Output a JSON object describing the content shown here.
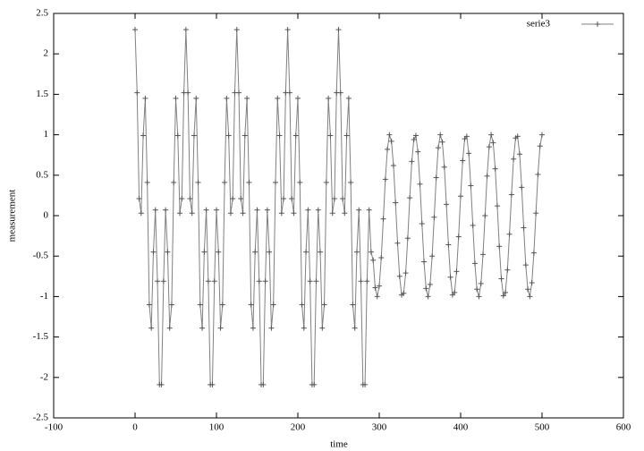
{
  "chart_data": {
    "type": "line",
    "xlabel": "time",
    "ylabel": "measurement",
    "xlim": [
      -100,
      600
    ],
    "xticks": [
      -100,
      0,
      100,
      200,
      300,
      400,
      500,
      600
    ],
    "ylim": [
      -2.5,
      2.5
    ],
    "yticks": [
      -2.5,
      -2,
      -1.5,
      -1,
      -0.5,
      0,
      0.5,
      1,
      1.5,
      2,
      2.5
    ],
    "legend": "top-right",
    "marker": "+",
    "x": [
      0,
      2.5,
      5,
      7.5,
      10,
      12.5,
      15,
      17.5,
      20,
      22.5,
      25,
      27.5,
      30,
      32.5,
      35,
      37.5,
      40,
      42.5,
      45,
      47.5,
      50,
      52.5,
      55,
      57.5,
      60,
      62.5,
      65,
      67.5,
      70,
      72.5,
      75,
      77.5,
      80,
      82.5,
      85,
      87.5,
      90,
      92.5,
      95,
      97.5,
      100,
      102.5,
      105,
      107.5,
      110,
      112.5,
      115,
      117.5,
      120,
      122.5,
      125,
      127.5,
      130,
      132.5,
      135,
      137.5,
      140,
      142.5,
      145,
      147.5,
      150,
      152.5,
      155,
      157.5,
      160,
      162.5,
      165,
      167.5,
      170,
      172.5,
      175,
      177.5,
      180,
      182.5,
      185,
      187.5,
      190,
      192.5,
      195,
      197.5,
      200,
      202.5,
      205,
      207.5,
      210,
      212.5,
      215,
      217.5,
      220,
      222.5,
      225,
      227.5,
      230,
      232.5,
      235,
      237.5,
      240,
      242.5,
      245,
      247.5,
      250,
      252.5,
      255,
      257.5,
      260,
      262.5,
      265,
      267.5,
      270,
      272.5,
      275,
      277.5,
      280,
      282.5,
      285,
      287.5,
      290,
      292.5,
      295,
      297.5,
      300,
      302.5,
      305,
      307.5,
      310,
      312.5,
      315,
      317.5,
      320,
      322.5,
      325,
      327.5,
      330,
      332.5,
      335,
      337.5,
      340,
      342.5,
      345,
      347.5,
      350,
      352.5,
      355,
      357.5,
      360,
      362.5,
      365,
      367.5,
      370,
      372.5,
      375,
      377.5,
      380,
      382.5,
      385,
      387.5,
      390,
      392.5,
      395,
      397.5,
      400,
      402.5,
      405,
      407.5,
      410,
      412.5,
      415,
      417.5,
      420,
      422.5,
      425,
      427.5,
      430,
      432.5,
      435,
      437.5,
      440,
      442.5,
      445,
      447.5,
      450,
      452.5,
      455,
      457.5,
      460,
      462.5,
      465,
      467.5,
      470,
      472.5,
      475,
      477.5,
      480,
      482.5,
      485,
      487.5,
      490,
      492.5,
      495,
      497.5,
      500
    ],
    "series": [
      {
        "name": "serie3",
        "color": "#555555",
        "values": [
          2.3,
          1.52,
          0.21,
          0.03,
          0.99,
          1.45,
          0.41,
          -1.1,
          -1.39,
          -0.45,
          0.07,
          -0.81,
          -2.09,
          -2.09,
          -0.81,
          0.07,
          -0.45,
          -1.39,
          -1.1,
          0.41,
          1.45,
          0.99,
          0.03,
          0.21,
          1.52,
          2.3,
          1.52,
          0.21,
          0.03,
          0.99,
          1.45,
          0.41,
          -1.1,
          -1.39,
          -0.45,
          0.07,
          -0.81,
          -2.09,
          -2.09,
          -0.81,
          0.07,
          -0.45,
          -1.39,
          -1.1,
          0.41,
          1.45,
          0.99,
          0.03,
          0.21,
          1.52,
          2.3,
          1.52,
          0.21,
          0.03,
          0.99,
          1.45,
          0.41,
          -1.1,
          -1.39,
          -0.45,
          0.07,
          -0.81,
          -2.09,
          -2.09,
          -0.81,
          0.07,
          -0.45,
          -1.39,
          -1.1,
          0.41,
          1.45,
          0.99,
          0.03,
          0.21,
          1.52,
          2.3,
          1.52,
          0.21,
          0.03,
          0.99,
          1.45,
          0.41,
          -1.1,
          -1.39,
          -0.45,
          0.07,
          -0.81,
          -2.09,
          -2.09,
          -0.81,
          0.07,
          -0.45,
          -1.39,
          -1.1,
          0.41,
          1.45,
          0.99,
          0.03,
          0.21,
          1.52,
          2.3,
          1.52,
          0.21,
          0.03,
          0.99,
          1.45,
          0.41,
          -1.1,
          -1.39,
          -0.45,
          0.07,
          -0.81,
          -2.09,
          -2.09,
          -0.81,
          0.07,
          -0.45,
          -0.55,
          -0.89,
          -1,
          -0.87,
          -0.52,
          -0.04,
          0.45,
          0.82,
          1,
          0.92,
          0.62,
          0.16,
          -0.34,
          -0.75,
          -0.98,
          -0.96,
          -0.71,
          -0.28,
          0.22,
          0.67,
          0.94,
          0.99,
          0.79,
          0.39,
          -0.1,
          -0.57,
          -0.9,
          -1,
          -0.85,
          -0.5,
          -0.02,
          0.47,
          0.84,
          1,
          0.91,
          0.6,
          0.14,
          -0.36,
          -0.76,
          -0.98,
          -0.95,
          -0.69,
          -0.26,
          0.24,
          0.68,
          0.95,
          0.98,
          0.77,
          0.37,
          -0.12,
          -0.59,
          -0.91,
          -1,
          -0.84,
          -0.48,
          0,
          0.49,
          0.85,
          1,
          0.9,
          0.58,
          0.12,
          -0.38,
          -0.78,
          -0.99,
          -0.95,
          -0.67,
          -0.23,
          0.26,
          0.7,
          0.96,
          0.98,
          0.76,
          0.35,
          -0.15,
          -0.61,
          -0.91,
          -1,
          -0.83,
          -0.46,
          0.03,
          0.51,
          0.86,
          1
        ]
      }
    ]
  }
}
